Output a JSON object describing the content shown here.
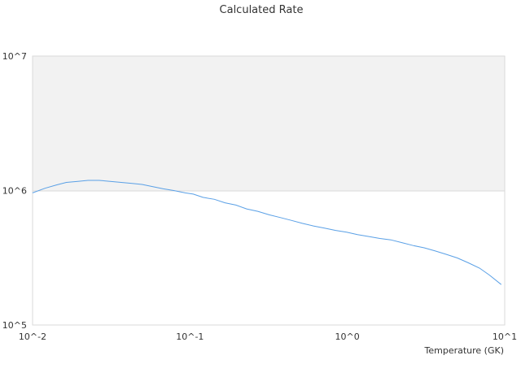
{
  "chart_data": {
    "type": "line",
    "title": "Calculated Rate",
    "xlabel": "Temperature (GK)",
    "ylabel": "",
    "x_scale": "log",
    "y_scale": "log",
    "xlim": [
      0.01,
      10
    ],
    "ylim": [
      100000,
      10000000
    ],
    "x_tick_labels": [
      "10^-2",
      "10^-1",
      "10^0",
      "10^1"
    ],
    "y_tick_labels": [
      "10^7",
      "10^6",
      "10^5"
    ],
    "grid": true,
    "legend": "none",
    "colors": {
      "line": "#5aa0e6",
      "band": "#f2f2f2",
      "border": "#d9d9d9",
      "grid": "#d9d9d9",
      "text": "#333333"
    },
    "series": [
      {
        "x": [
          0.01,
          0.012,
          0.0142,
          0.0164,
          0.0194,
          0.0225,
          0.0265,
          0.0311,
          0.0366,
          0.0429,
          0.0496,
          0.0577,
          0.0677,
          0.0789,
          0.0933,
          0.105,
          0.121,
          0.143,
          0.167,
          0.196,
          0.229,
          0.27,
          0.319,
          0.374,
          0.44,
          0.518,
          0.609,
          0.716,
          0.844,
          0.99,
          1.16,
          1.37,
          1.61,
          1.89,
          2.22,
          2.62,
          3.08,
          3.62,
          4.26,
          5.0,
          5.88,
          6.92,
          8.0,
          9.5
        ],
        "y": [
          960000,
          1040000,
          1100000,
          1150000,
          1170000,
          1190000,
          1190000,
          1170000,
          1150000,
          1130000,
          1110000,
          1070000,
          1030000,
          1000000,
          960000,
          940000,
          890000,
          860000,
          810000,
          780000,
          730000,
          700000,
          660000,
          630000,
          600000,
          570000,
          545000,
          525000,
          505000,
          490000,
          470000,
          455000,
          440000,
          430000,
          410000,
          390000,
          375000,
          355000,
          335000,
          315000,
          290000,
          265000,
          235000,
          200000
        ]
      }
    ]
  }
}
